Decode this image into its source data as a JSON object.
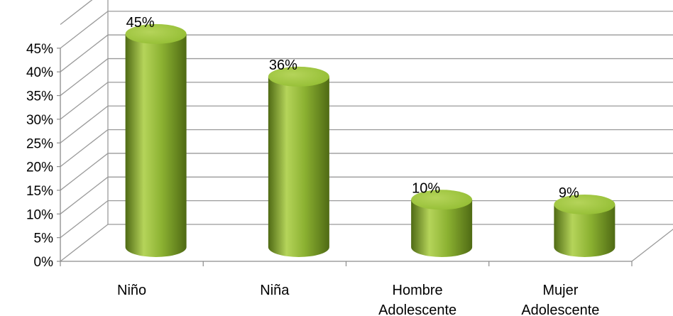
{
  "chart_data": {
    "type": "bar",
    "style": "3d-cylinder",
    "categories": [
      [
        "Niño"
      ],
      [
        "Niña"
      ],
      [
        "Hombre",
        "Adolescente"
      ],
      [
        "Mujer",
        "Adolescente"
      ]
    ],
    "values": [
      45,
      36,
      10,
      9
    ],
    "data_labels": [
      "45%",
      "36%",
      "10%",
      "9%"
    ],
    "y_ticks": [
      "0%",
      "5%",
      "10%",
      "15%",
      "20%",
      "25%",
      "30%",
      "35%",
      "40%",
      "45%"
    ],
    "ylim": [
      0,
      50
    ],
    "grid": true,
    "legend": "none",
    "colors": {
      "bar_light": "#b5d45a",
      "bar_mid": "#8bb131",
      "bar_dark": "#4f6a14",
      "bar_top": "#93bd33",
      "grid": "#9a9a9a",
      "axis": "#8c8c8c"
    }
  }
}
